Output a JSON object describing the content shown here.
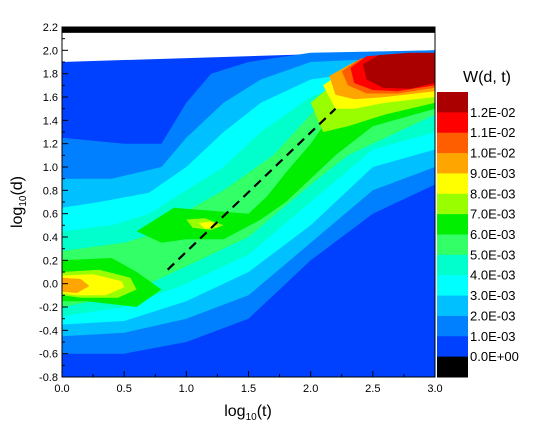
{
  "chart_data": {
    "type": "heatmap",
    "title": "",
    "xlabel": {
      "prefix": "log",
      "sub": "10",
      "suffix": "(t)"
    },
    "ylabel": {
      "prefix": "log",
      "sub": "10",
      "suffix": "(d)"
    },
    "xlim": [
      0.0,
      3.0
    ],
    "ylim": [
      -0.8,
      2.2
    ],
    "x_ticks": [
      "0.0",
      "0.5",
      "1.0",
      "1.5",
      "2.0",
      "2.5",
      "3.0"
    ],
    "y_ticks": [
      "-0.8",
      "-0.6",
      "-0.4",
      "-0.2",
      "0.0",
      "0.2",
      "0.4",
      "0.6",
      "0.8",
      "1.0",
      "1.2",
      "1.4",
      "1.6",
      "1.8",
      "2.0",
      "2.2"
    ],
    "colorbar": {
      "title": "W(d, t)",
      "levels": [
        {
          "label": "1.2E-02",
          "color": "#aa0000"
        },
        {
          "label": "1.1E-02",
          "color": "#ff0000"
        },
        {
          "label": "1.0E-02",
          "color": "#ff5e00"
        },
        {
          "label": "9.0E-03",
          "color": "#ffa500"
        },
        {
          "label": "8.0E-03",
          "color": "#ffff00"
        },
        {
          "label": "7.0E-03",
          "color": "#99ff00"
        },
        {
          "label": "6.0E-03",
          "color": "#00ee00"
        },
        {
          "label": "5.0E-03",
          "color": "#33ff66"
        },
        {
          "label": "4.0E-03",
          "color": "#00ffcc"
        },
        {
          "label": "3.0E-03",
          "color": "#00ffff"
        },
        {
          "label": "2.0E-03",
          "color": "#00c0ff"
        },
        {
          "label": "1.0E-03",
          "color": "#0080ff"
        },
        {
          "label": "0.0E+00",
          "color": "#0040ff"
        },
        {
          "label": "",
          "color": "#000000"
        }
      ]
    },
    "ridge_line": {
      "style": "dashed",
      "color": "#000000",
      "x": [
        0.85,
        2.2
      ],
      "y": [
        0.12,
        1.5
      ]
    },
    "bands": [
      {
        "color": "#0040ff",
        "top": [
          [
            0.0,
            1.9
          ],
          [
            3.0,
            2.0
          ]
        ],
        "bottom": [
          [
            0.0,
            -0.8
          ],
          [
            3.0,
            -0.8
          ]
        ]
      },
      {
        "color": "#0080ff",
        "top": [
          [
            0.0,
            1.25
          ],
          [
            0.5,
            1.2
          ],
          [
            0.8,
            1.2
          ],
          [
            1.0,
            1.55
          ],
          [
            1.2,
            1.8
          ],
          [
            1.5,
            1.9
          ],
          [
            2.0,
            1.98
          ],
          [
            3.0,
            2.0
          ]
        ],
        "bottom": [
          [
            0.0,
            -0.6
          ],
          [
            0.5,
            -0.6
          ],
          [
            1.0,
            -0.5
          ],
          [
            1.5,
            -0.3
          ],
          [
            2.0,
            0.2
          ],
          [
            2.5,
            0.6
          ],
          [
            3.0,
            0.85
          ]
        ]
      },
      {
        "color": "#00c0ff",
        "top": [
          [
            0.0,
            0.9
          ],
          [
            0.4,
            0.9
          ],
          [
            0.8,
            1.0
          ],
          [
            1.0,
            1.25
          ],
          [
            1.3,
            1.55
          ],
          [
            1.6,
            1.75
          ],
          [
            2.0,
            1.9
          ],
          [
            3.0,
            1.95
          ]
        ],
        "bottom": [
          [
            0.0,
            -0.45
          ],
          [
            0.5,
            -0.42
          ],
          [
            1.0,
            -0.3
          ],
          [
            1.5,
            -0.1
          ],
          [
            2.0,
            0.35
          ],
          [
            2.5,
            0.8
          ],
          [
            3.0,
            1.0
          ]
        ]
      },
      {
        "color": "#00ffff",
        "top": [
          [
            0.0,
            0.65
          ],
          [
            0.3,
            0.7
          ],
          [
            0.7,
            0.78
          ],
          [
            1.0,
            1.0
          ],
          [
            1.3,
            1.3
          ],
          [
            1.6,
            1.55
          ],
          [
            2.0,
            1.75
          ],
          [
            3.0,
            1.9
          ]
        ],
        "bottom": [
          [
            0.0,
            -0.35
          ],
          [
            0.5,
            -0.32
          ],
          [
            1.0,
            -0.15
          ],
          [
            1.5,
            0.1
          ],
          [
            2.0,
            0.5
          ],
          [
            2.5,
            1.0
          ],
          [
            3.0,
            1.15
          ]
        ]
      },
      {
        "color": "#00ffcc",
        "top": [
          [
            0.0,
            0.45
          ],
          [
            0.4,
            0.5
          ],
          [
            0.7,
            0.6
          ],
          [
            1.0,
            0.8
          ],
          [
            1.3,
            1.0
          ],
          [
            1.6,
            1.3
          ],
          [
            2.0,
            1.6
          ],
          [
            2.5,
            1.8
          ],
          [
            3.0,
            1.85
          ]
        ],
        "bottom": [
          [
            0.0,
            -0.28
          ],
          [
            0.5,
            -0.2
          ],
          [
            1.0,
            0.0
          ],
          [
            1.5,
            0.25
          ],
          [
            2.0,
            0.7
          ],
          [
            2.5,
            1.15
          ],
          [
            3.0,
            1.3
          ]
        ]
      },
      {
        "color": "#33ff66",
        "top": [
          [
            0.0,
            0.28
          ],
          [
            0.5,
            0.35
          ],
          [
            0.8,
            0.45
          ],
          [
            1.0,
            0.62
          ],
          [
            1.3,
            0.8
          ],
          [
            1.7,
            1.1
          ],
          [
            2.0,
            1.45
          ],
          [
            2.3,
            1.7
          ],
          [
            3.0,
            1.8
          ]
        ],
        "bottom": [
          [
            0.0,
            -0.2
          ],
          [
            0.5,
            -0.1
          ],
          [
            1.0,
            0.15
          ],
          [
            1.5,
            0.4
          ],
          [
            2.0,
            0.85
          ],
          [
            2.3,
            1.1
          ],
          [
            3.0,
            1.45
          ]
        ]
      }
    ],
    "blobs": [
      {
        "color": "#00ee00",
        "points": [
          [
            0.0,
            0.2
          ],
          [
            0.4,
            0.22
          ],
          [
            0.6,
            0.1
          ],
          [
            0.8,
            -0.05
          ],
          [
            0.6,
            -0.2
          ],
          [
            0.2,
            -0.15
          ],
          [
            0.0,
            -0.15
          ]
        ]
      },
      {
        "color": "#00ee00",
        "points": [
          [
            0.6,
            0.45
          ],
          [
            0.9,
            0.65
          ],
          [
            1.25,
            0.62
          ],
          [
            1.5,
            0.6
          ],
          [
            1.65,
            0.75
          ],
          [
            1.8,
            0.95
          ],
          [
            2.0,
            1.2
          ],
          [
            2.2,
            1.5
          ],
          [
            2.5,
            1.7
          ],
          [
            3.0,
            1.75
          ],
          [
            3.0,
            1.5
          ],
          [
            2.5,
            1.35
          ],
          [
            2.2,
            1.1
          ],
          [
            2.0,
            0.9
          ],
          [
            1.8,
            0.7
          ],
          [
            1.6,
            0.55
          ],
          [
            1.3,
            0.38
          ],
          [
            1.0,
            0.38
          ],
          [
            0.8,
            0.35
          ]
        ]
      },
      {
        "color": "#99ff00",
        "points": [
          [
            0.0,
            0.1
          ],
          [
            0.3,
            0.12
          ],
          [
            0.55,
            0.05
          ],
          [
            0.6,
            -0.05
          ],
          [
            0.45,
            -0.12
          ],
          [
            0.15,
            -0.12
          ],
          [
            0.0,
            -0.1
          ]
        ]
      },
      {
        "color": "#99ff00",
        "points": [
          [
            2.0,
            1.55
          ],
          [
            2.3,
            1.82
          ],
          [
            2.6,
            1.9
          ],
          [
            3.0,
            1.9
          ],
          [
            3.0,
            1.55
          ],
          [
            2.6,
            1.45
          ],
          [
            2.3,
            1.35
          ],
          [
            2.1,
            1.3
          ]
        ]
      },
      {
        "color": "#99ff00",
        "points": [
          [
            1.0,
            0.55
          ],
          [
            1.15,
            0.56
          ],
          [
            1.3,
            0.5
          ],
          [
            1.2,
            0.46
          ],
          [
            1.05,
            0.48
          ]
        ]
      },
      {
        "color": "#ffff00",
        "points": [
          [
            0.0,
            0.07
          ],
          [
            0.25,
            0.08
          ],
          [
            0.48,
            0.02
          ],
          [
            0.5,
            -0.03
          ],
          [
            0.35,
            -0.1
          ],
          [
            0.1,
            -0.1
          ],
          [
            0.0,
            -0.08
          ]
        ]
      },
      {
        "color": "#ffff00",
        "points": [
          [
            1.1,
            0.52
          ],
          [
            1.2,
            0.53
          ],
          [
            1.25,
            0.49
          ],
          [
            1.15,
            0.47
          ]
        ]
      },
      {
        "color": "#ffff00",
        "points": [
          [
            2.1,
            1.7
          ],
          [
            2.35,
            1.88
          ],
          [
            2.6,
            1.93
          ],
          [
            3.0,
            1.93
          ],
          [
            3.0,
            1.6
          ],
          [
            2.6,
            1.55
          ],
          [
            2.35,
            1.5
          ],
          [
            2.2,
            1.5
          ]
        ]
      },
      {
        "color": "#ffa500",
        "points": [
          [
            0.0,
            0.05
          ],
          [
            0.15,
            0.04
          ],
          [
            0.22,
            -0.02
          ],
          [
            0.12,
            -0.08
          ],
          [
            0.0,
            -0.07
          ]
        ]
      },
      {
        "color": "#ffa500",
        "points": [
          [
            2.15,
            1.78
          ],
          [
            2.35,
            1.9
          ],
          [
            2.6,
            1.95
          ],
          [
            3.0,
            1.95
          ],
          [
            3.0,
            1.65
          ],
          [
            2.6,
            1.6
          ],
          [
            2.35,
            1.58
          ],
          [
            2.2,
            1.62
          ]
        ]
      },
      {
        "color": "#ff5e00",
        "points": [
          [
            2.25,
            1.82
          ],
          [
            2.4,
            1.93
          ],
          [
            2.7,
            1.96
          ],
          [
            3.0,
            1.96
          ],
          [
            3.0,
            1.68
          ],
          [
            2.7,
            1.63
          ],
          [
            2.45,
            1.63
          ],
          [
            2.3,
            1.7
          ]
        ]
      },
      {
        "color": "#ff0000",
        "points": [
          [
            2.32,
            1.85
          ],
          [
            2.45,
            1.95
          ],
          [
            2.7,
            1.97
          ],
          [
            3.0,
            1.97
          ],
          [
            3.0,
            1.7
          ],
          [
            2.7,
            1.65
          ],
          [
            2.5,
            1.66
          ],
          [
            2.35,
            1.72
          ]
        ]
      },
      {
        "color": "#aa0000",
        "points": [
          [
            2.42,
            1.88
          ],
          [
            2.55,
            1.96
          ],
          [
            2.8,
            1.98
          ],
          [
            3.0,
            1.98
          ],
          [
            3.0,
            1.72
          ],
          [
            2.8,
            1.67
          ],
          [
            2.58,
            1.68
          ],
          [
            2.45,
            1.75
          ]
        ]
      }
    ],
    "top_strip": {
      "color": "#000000",
      "ymin": 2.15,
      "ymax": 2.2
    }
  }
}
